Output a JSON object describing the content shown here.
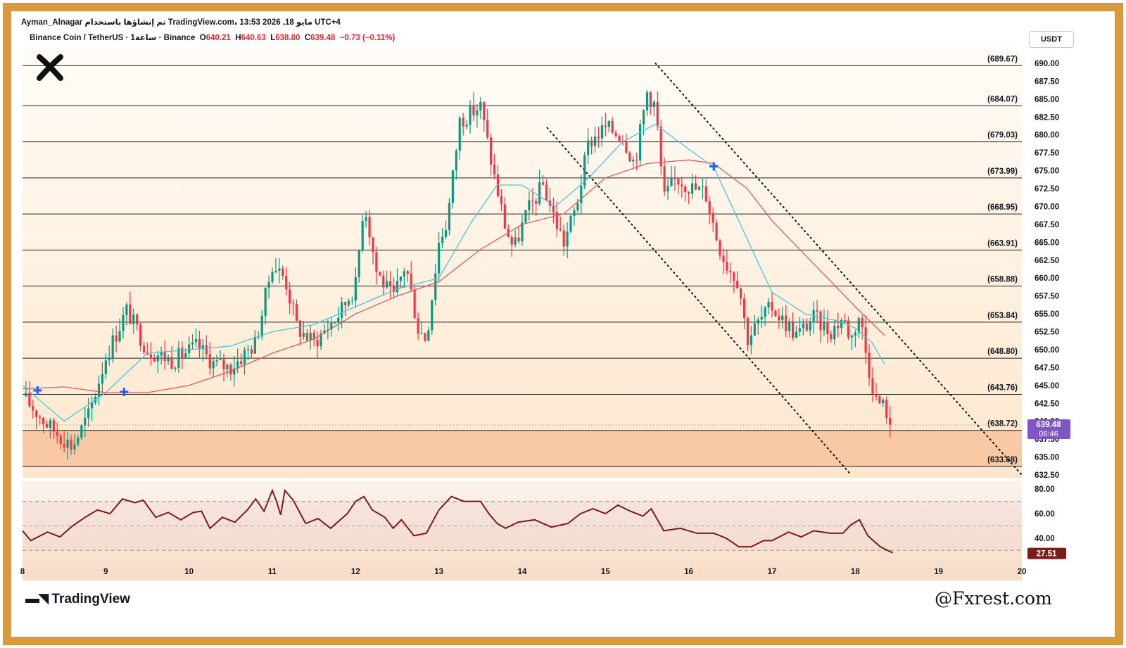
{
  "header": {
    "author": "Ayman_Alnagar",
    "published_text": "تم إنشاؤها باستخدام TradingView.com، 13:53 2026 ,18 مايو UTC+4",
    "symbol_text": "Binance Coin / TetherUS · 1ساعة · Binance",
    "open_label": "O",
    "open_value": "640.21",
    "high_label": "H",
    "high_value": "640.63",
    "low_label": "L",
    "low_value": "638.80",
    "close_label": "C",
    "close_value": "639.48",
    "change_value": "−0.73 (−0.11%)"
  },
  "currency_button": "USDT",
  "branding": {
    "platform": "TradingView",
    "watermark": "@Fxrest.com"
  },
  "colors": {
    "frame": "#d89a3c",
    "up_candle": "#089981",
    "down_candle": "#f23645",
    "ma_fast": "#4cc4d6",
    "ma_slow": "#e05a5a",
    "rsi": "#7b1a1a",
    "support_zone": "#f8c4a0",
    "price_tag": "#7e57c2",
    "rsi_tag": "#7b1a1a",
    "signal_marker": "#1e5eff"
  },
  "chart_data": [
    {
      "type": "candlestick",
      "symbol": "BNB/USDT",
      "timeframe": "1h",
      "ylim": [
        632.5,
        690
      ],
      "y_ticks": [
        "632.50",
        "635.00",
        "637.50",
        "640.00",
        "642.50",
        "645.00",
        "647.50",
        "650.00",
        "652.50",
        "655.00",
        "657.50",
        "660.00",
        "662.50",
        "665.00",
        "667.50",
        "670.00",
        "672.50",
        "675.00",
        "677.50",
        "680.00",
        "682.50",
        "685.00",
        "687.50",
        "690.00"
      ],
      "x_ticks": [
        "8",
        "9",
        "10",
        "11",
        "12",
        "13",
        "14",
        "15",
        "16",
        "17",
        "18",
        "19",
        "20"
      ],
      "horizontal_levels": [
        {
          "value": 689.67,
          "label": "(689.67)"
        },
        {
          "value": 684.07,
          "label": "(684.07)"
        },
        {
          "value": 679.03,
          "label": "(679.03)"
        },
        {
          "value": 673.99,
          "label": "(673.99)"
        },
        {
          "value": 668.95,
          "label": "(668.95)"
        },
        {
          "value": 663.91,
          "label": "(663.91)"
        },
        {
          "value": 658.88,
          "label": "(658.88)"
        },
        {
          "value": 653.84,
          "label": "(653.84)"
        },
        {
          "value": 648.8,
          "label": "(648.80)"
        },
        {
          "value": 643.76,
          "label": "(643.76)"
        },
        {
          "value": 638.72,
          "label": "(638.72)"
        },
        {
          "value": 633.68,
          "label": "(633.68)"
        }
      ],
      "support_zone": [
        633.68,
        638.72
      ],
      "current_price": {
        "price": "639.48",
        "countdown": "06:46"
      },
      "trendlines": [
        {
          "from": {
            "t": 14.3,
            "price": 681
          },
          "to": {
            "t": 17.95,
            "price": 632.5
          },
          "style": "dotted"
        },
        {
          "from": {
            "t": 15.6,
            "price": 690
          },
          "to": {
            "t": 20.0,
            "price": 632.5
          },
          "style": "dotted"
        }
      ],
      "signal_markers": [
        {
          "t": 8.18,
          "price": 644.3
        },
        {
          "t": 9.22,
          "price": 644.1
        },
        {
          "t": 16.3,
          "price": 675.6
        }
      ],
      "path": [
        [
          8.0,
          643.5
        ],
        [
          8.3,
          639.5
        ],
        [
          8.6,
          636.5
        ],
        [
          8.8,
          641.0
        ],
        [
          9.0,
          649.0
        ],
        [
          9.25,
          655.5
        ],
        [
          9.5,
          650.0
        ],
        [
          9.8,
          648.5
        ],
        [
          10.1,
          650.5
        ],
        [
          10.3,
          648.0
        ],
        [
          10.5,
          647.5
        ],
        [
          10.8,
          651.0
        ],
        [
          11.0,
          662.0
        ],
        [
          11.15,
          660.0
        ],
        [
          11.3,
          653.0
        ],
        [
          11.5,
          651.0
        ],
        [
          11.8,
          655.0
        ],
        [
          12.0,
          659.0
        ],
        [
          12.1,
          671.0
        ],
        [
          12.25,
          661.0
        ],
        [
          12.45,
          657.0
        ],
        [
          12.6,
          662.0
        ],
        [
          12.75,
          653.0
        ],
        [
          12.85,
          651.5
        ],
        [
          13.0,
          665.0
        ],
        [
          13.1,
          668.0
        ],
        [
          13.25,
          682.0
        ],
        [
          13.5,
          684.0
        ],
        [
          13.65,
          675.0
        ],
        [
          13.8,
          667.0
        ],
        [
          13.9,
          664.0
        ],
        [
          14.05,
          669.0
        ],
        [
          14.25,
          673.0
        ],
        [
          14.4,
          668.0
        ],
        [
          14.5,
          665.0
        ],
        [
          14.65,
          670.0
        ],
        [
          14.8,
          679.0
        ],
        [
          15.0,
          681.0
        ],
        [
          15.2,
          680.0
        ],
        [
          15.35,
          676.0
        ],
        [
          15.5,
          686.0
        ],
        [
          15.6,
          684.0
        ],
        [
          15.7,
          671.0
        ],
        [
          15.85,
          674.0
        ],
        [
          16.05,
          672.5
        ],
        [
          16.2,
          672.0
        ],
        [
          16.35,
          665.0
        ],
        [
          16.45,
          662.0
        ],
        [
          16.6,
          659.5
        ],
        [
          16.7,
          651.5
        ],
        [
          16.85,
          654.0
        ],
        [
          17.0,
          656.0
        ],
        [
          17.1,
          654.5
        ],
        [
          17.3,
          652.0
        ],
        [
          17.5,
          654.5
        ],
        [
          17.7,
          652.5
        ],
        [
          17.85,
          654.5
        ],
        [
          17.95,
          651.5
        ],
        [
          18.05,
          655.0
        ],
        [
          18.15,
          648.0
        ],
        [
          18.25,
          643.0
        ],
        [
          18.35,
          642.0
        ],
        [
          18.45,
          639.5
        ]
      ],
      "series": [
        {
          "name": "MA fast",
          "values": [
            [
              8.0,
              645
            ],
            [
              8.5,
              640
            ],
            [
              9.0,
              644
            ],
            [
              9.5,
              649.5
            ],
            [
              10.0,
              650
            ],
            [
              10.5,
              650.5
            ],
            [
              11.0,
              652.5
            ],
            [
              11.5,
              653.5
            ],
            [
              12.0,
              656
            ],
            [
              12.5,
              658.5
            ],
            [
              13.0,
              660
            ],
            [
              13.4,
              668
            ],
            [
              13.7,
              673
            ],
            [
              14.0,
              673
            ],
            [
              14.4,
              670
            ],
            [
              14.8,
              674
            ],
            [
              15.2,
              679
            ],
            [
              15.6,
              681.5
            ],
            [
              16.0,
              678
            ],
            [
              16.3,
              675.5
            ],
            [
              16.6,
              668
            ],
            [
              17.0,
              658
            ],
            [
              17.4,
              655
            ],
            [
              17.8,
              654
            ],
            [
              18.0,
              653
            ],
            [
              18.2,
              651
            ],
            [
              18.35,
              648
            ]
          ]
        },
        {
          "name": "MA slow",
          "values": [
            [
              8.0,
              644.5
            ],
            [
              8.5,
              644.8
            ],
            [
              9.0,
              644
            ],
            [
              9.5,
              644
            ],
            [
              10.0,
              645
            ],
            [
              10.5,
              647
            ],
            [
              11.0,
              649.5
            ],
            [
              11.5,
              651.5
            ],
            [
              12.0,
              655
            ],
            [
              12.5,
              657.5
            ],
            [
              13.0,
              659.5
            ],
            [
              13.5,
              664
            ],
            [
              14.0,
              667.5
            ],
            [
              14.5,
              669
            ],
            [
              15.0,
              674
            ],
            [
              15.5,
              676
            ],
            [
              16.0,
              676.5
            ],
            [
              16.3,
              676
            ],
            [
              16.7,
              672.5
            ],
            [
              17.0,
              668
            ],
            [
              17.5,
              662
            ],
            [
              18.0,
              656
            ],
            [
              18.35,
              652
            ]
          ]
        }
      ]
    },
    {
      "type": "line",
      "indicator": "RSI",
      "ylim": [
        25,
        83
      ],
      "y_ticks": [
        "80.00",
        "60.00",
        "40.00"
      ],
      "levels": [
        70,
        50,
        30
      ],
      "current_value": "27.51",
      "values": [
        [
          8.0,
          46
        ],
        [
          8.1,
          38
        ],
        [
          8.3,
          45
        ],
        [
          8.45,
          41
        ],
        [
          8.6,
          50
        ],
        [
          8.75,
          57
        ],
        [
          8.9,
          63
        ],
        [
          9.05,
          60
        ],
        [
          9.2,
          72
        ],
        [
          9.35,
          69
        ],
        [
          9.45,
          71
        ],
        [
          9.6,
          57
        ],
        [
          9.75,
          61
        ],
        [
          9.9,
          55
        ],
        [
          10.05,
          61
        ],
        [
          10.15,
          62
        ],
        [
          10.25,
          48
        ],
        [
          10.4,
          57
        ],
        [
          10.55,
          53
        ],
        [
          10.7,
          63
        ],
        [
          10.8,
          72
        ],
        [
          10.9,
          62
        ],
        [
          11.0,
          79
        ],
        [
          11.05,
          70
        ],
        [
          11.1,
          59
        ],
        [
          11.15,
          79
        ],
        [
          11.25,
          71
        ],
        [
          11.4,
          52
        ],
        [
          11.55,
          56
        ],
        [
          11.7,
          48
        ],
        [
          11.9,
          60
        ],
        [
          12.0,
          70
        ],
        [
          12.1,
          74
        ],
        [
          12.2,
          63
        ],
        [
          12.35,
          57
        ],
        [
          12.45,
          48
        ],
        [
          12.55,
          55
        ],
        [
          12.7,
          42
        ],
        [
          12.85,
          44
        ],
        [
          13.0,
          63
        ],
        [
          13.15,
          74
        ],
        [
          13.3,
          70
        ],
        [
          13.5,
          70
        ],
        [
          13.6,
          60
        ],
        [
          13.7,
          52
        ],
        [
          13.8,
          48
        ],
        [
          13.95,
          53
        ],
        [
          14.15,
          55
        ],
        [
          14.35,
          49
        ],
        [
          14.55,
          52
        ],
        [
          14.7,
          60
        ],
        [
          14.85,
          64
        ],
        [
          15.0,
          60
        ],
        [
          15.15,
          67
        ],
        [
          15.3,
          62
        ],
        [
          15.45,
          58
        ],
        [
          15.55,
          64
        ],
        [
          15.7,
          46
        ],
        [
          15.9,
          48
        ],
        [
          16.1,
          44
        ],
        [
          16.3,
          44
        ],
        [
          16.45,
          40
        ],
        [
          16.6,
          33
        ],
        [
          16.75,
          33
        ],
        [
          16.9,
          38
        ],
        [
          17.0,
          38
        ],
        [
          17.2,
          45
        ],
        [
          17.35,
          41
        ],
        [
          17.5,
          46
        ],
        [
          17.7,
          44
        ],
        [
          17.85,
          44
        ],
        [
          17.95,
          51
        ],
        [
          18.05,
          55
        ],
        [
          18.15,
          42
        ],
        [
          18.3,
          33
        ],
        [
          18.45,
          28
        ]
      ]
    }
  ]
}
